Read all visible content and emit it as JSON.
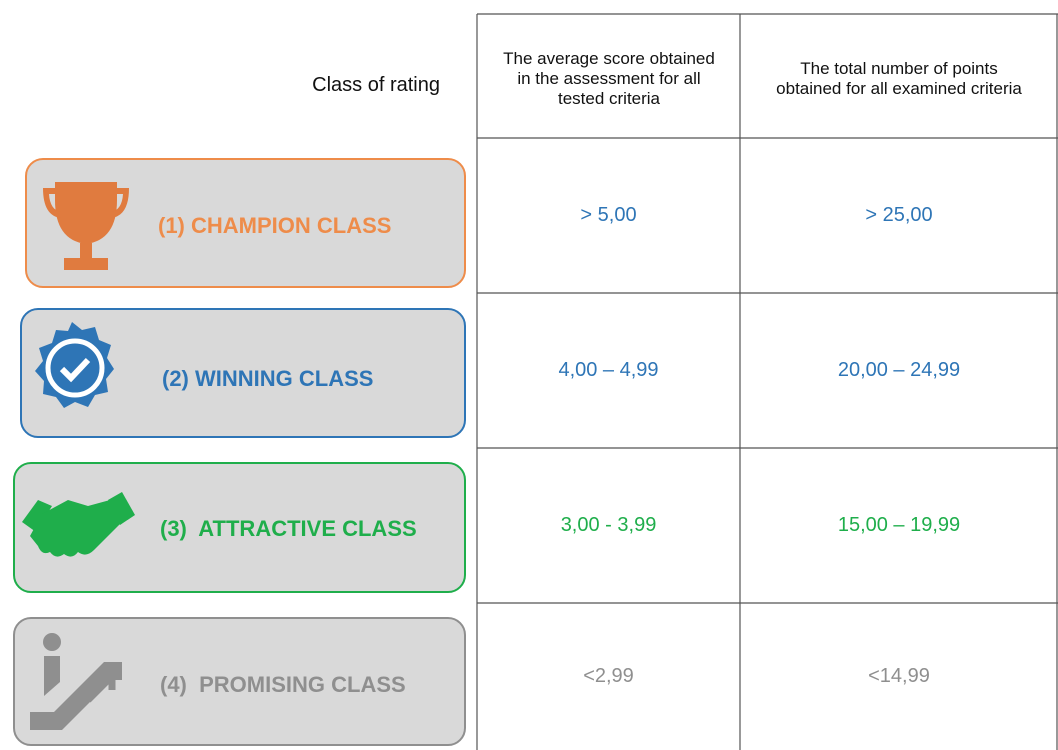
{
  "header": {
    "class_label": "Class of rating",
    "columns": [
      "The average score obtained in the assessment for all tested criteria",
      "The total number of points obtained for all examined criteria"
    ]
  },
  "rows": [
    {
      "class": "(1) CHAMPION CLASS",
      "average": "> 5,00",
      "total": "> 25,00"
    },
    {
      "class": "(2) WINNING CLASS",
      "average": "4,00 – 4,99",
      "total": "20,00 – 24,99"
    },
    {
      "class": "(3)  ATTRACTIVE CLASS",
      "average": "3,00 - 3,99",
      "total": "15,00 – 19,99"
    },
    {
      "class": "(4)  PROMISING CLASS",
      "average": "<2,99",
      "total": "<14,99"
    }
  ]
}
